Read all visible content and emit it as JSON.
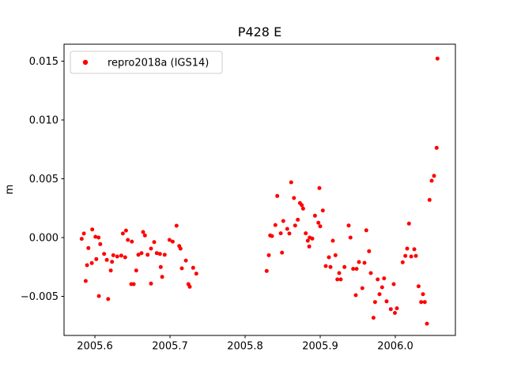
{
  "figure": {
    "title": "P428 E",
    "ylabel": "m",
    "legend": {
      "label": "repro2018a (IGS14)"
    },
    "colors": {
      "marker": "#ff0000",
      "axis": "#000000",
      "legend_border": "#cccccc",
      "background": "#ffffff"
    }
  },
  "chart_data": {
    "type": "scatter",
    "title": "P428 E",
    "xlabel": "",
    "ylabel": "m",
    "xlim": [
      2005.5589,
      2006.08
    ],
    "ylim": [
      -0.008322,
      0.016443
    ],
    "xticks": [
      2005.6,
      2005.7,
      2005.8,
      2005.9,
      2006.0
    ],
    "yticks": [
      -0.005,
      0.0,
      0.005,
      0.01,
      0.015
    ],
    "grid": false,
    "legend_position": "upper left",
    "series": [
      {
        "name": "repro2018a (IGS14)",
        "color": "#ff0000",
        "marker": "dot",
        "points": [
          [
            2005.5965,
            0.00069
          ],
          [
            2005.5853,
            0.00034
          ],
          [
            2005.5824,
            -0.00011
          ],
          [
            2005.6007,
            7e-05
          ],
          [
            2005.6049,
            0.0
          ],
          [
            2005.6372,
            0.00034
          ],
          [
            2005.6414,
            0.0006
          ],
          [
            2005.6439,
            -0.0002
          ],
          [
            2005.6492,
            -0.00034
          ],
          [
            2005.6071,
            -0.00056
          ],
          [
            2005.5913,
            -0.00089
          ],
          [
            2005.6123,
            -0.00139
          ],
          [
            2005.6245,
            -0.0015
          ],
          [
            2005.6158,
            -0.0019
          ],
          [
            2005.6018,
            -0.00183
          ],
          [
            2005.6298,
            -0.00161
          ],
          [
            2005.6351,
            -0.00154
          ],
          [
            2005.6403,
            -0.00168
          ],
          [
            2005.5958,
            -0.00217
          ],
          [
            2005.5895,
            -0.00235
          ],
          [
            2005.6228,
            -0.00206
          ],
          [
            2005.6211,
            -0.0028
          ],
          [
            2005.5877,
            -0.00369
          ],
          [
            2005.6484,
            -0.00396
          ],
          [
            2005.6053,
            -0.00497
          ],
          [
            2005.6176,
            -0.00523
          ],
          [
            2005.7087,
            0.00101
          ],
          [
            2005.6642,
            0.00047
          ],
          [
            2005.6666,
            0.00018
          ],
          [
            2005.6993,
            -0.0002
          ],
          [
            2005.7035,
            -0.00034
          ],
          [
            2005.6789,
            -0.00038
          ],
          [
            2005.7123,
            -0.00072
          ],
          [
            2005.714,
            -0.00094
          ],
          [
            2005.6747,
            -0.00094
          ],
          [
            2005.6824,
            -0.00132
          ],
          [
            2005.6866,
            -0.00139
          ],
          [
            2005.6702,
            -0.00146
          ],
          [
            2005.6579,
            -0.00146
          ],
          [
            2005.6621,
            -0.00132
          ],
          [
            2005.6929,
            -0.00146
          ],
          [
            2005.7211,
            -0.00195
          ],
          [
            2005.7158,
            -0.00262
          ],
          [
            2005.7308,
            -0.00257
          ],
          [
            2005.655,
            -0.0028
          ],
          [
            2005.735,
            -0.00307
          ],
          [
            2005.6877,
            -0.0025
          ],
          [
            2005.6895,
            -0.00334
          ],
          [
            2005.6516,
            -0.00396
          ],
          [
            2005.6747,
            -0.00391
          ],
          [
            2005.7245,
            -0.00396
          ],
          [
            2005.7263,
            -0.00418
          ],
          [
            2005.8614,
            0.0047
          ],
          [
            2005.8989,
            0.00421
          ],
          [
            2005.8428,
            0.00354
          ],
          [
            2005.865,
            0.00336
          ],
          [
            2005.873,
            0.00293
          ],
          [
            2005.8755,
            0.00275
          ],
          [
            2005.8772,
            0.00246
          ],
          [
            2005.9035,
            0.0023
          ],
          [
            2005.893,
            0.00186
          ],
          [
            2005.8702,
            0.00152
          ],
          [
            2005.8508,
            0.00141
          ],
          [
            2005.8403,
            0.00107
          ],
          [
            2005.8666,
            0.00103
          ],
          [
            2005.8976,
            0.00126
          ],
          [
            2005.9,
            0.00096
          ],
          [
            2005.8474,
            0.00036
          ],
          [
            2005.8561,
            0.00074
          ],
          [
            2005.8589,
            0.00034
          ],
          [
            2005.8333,
            0.00018
          ],
          [
            2005.8358,
            0.00013
          ],
          [
            2005.8807,
            0.00036
          ],
          [
            2005.886,
            0.0
          ],
          [
            2005.8835,
            -0.00027
          ],
          [
            2005.8895,
            -9e-05
          ],
          [
            2005.8853,
            -0.00076
          ],
          [
            2005.8491,
            -0.00128
          ],
          [
            2005.8316,
            -0.0015
          ],
          [
            2005.9074,
            -0.00242
          ],
          [
            2005.8287,
            -0.00284
          ],
          [
            2005.9379,
            0.00103
          ],
          [
            2005.9614,
            0.00062
          ],
          [
            2005.9403,
            0.0
          ],
          [
            2005.9168,
            -0.00027
          ],
          [
            2005.965,
            -0.00116
          ],
          [
            2005.9203,
            -0.0015
          ],
          [
            2005.9116,
            -0.00168
          ],
          [
            2005.9137,
            -0.0025
          ],
          [
            2005.9323,
            -0.0025
          ],
          [
            2005.9439,
            -0.00266
          ],
          [
            2005.9484,
            -0.00266
          ],
          [
            2005.9516,
            -0.00208
          ],
          [
            2005.9589,
            -0.00215
          ],
          [
            2005.9253,
            -0.00302
          ],
          [
            2005.9228,
            -0.00356
          ],
          [
            2005.9274,
            -0.00356
          ],
          [
            2005.9674,
            -0.00302
          ],
          [
            2005.9765,
            -0.00356
          ],
          [
            2005.985,
            -0.00347
          ],
          [
            2005.9979,
            -0.00396
          ],
          [
            2005.9824,
            -0.00423
          ],
          [
            2005.9561,
            -0.0043
          ],
          [
            2005.9474,
            -0.0049
          ],
          [
            2005.9789,
            -0.00481
          ],
          [
            2005.973,
            -0.00548
          ],
          [
            2005.9884,
            -0.00542
          ],
          [
            2005.994,
            -0.00609
          ],
          [
            2006.0021,
            -0.00601
          ],
          [
            2005.9995,
            -0.00641
          ],
          [
            2005.9709,
            -0.00682
          ],
          [
            2006.0456,
            0.0032
          ],
          [
            2006.0182,
            0.00119
          ],
          [
            2006.0158,
            -0.00094
          ],
          [
            2006.0253,
            -0.00099
          ],
          [
            2006.0134,
            -0.00156
          ],
          [
            2006.0211,
            -0.00161
          ],
          [
            2006.0274,
            -0.00156
          ],
          [
            2006.0098,
            -0.0021
          ],
          [
            2006.0551,
            0.00763
          ],
          [
            2006.0516,
            0.00525
          ],
          [
            2006.0484,
            0.00483
          ],
          [
            2006.0561,
            0.01522
          ],
          [
            2006.0309,
            -0.00414
          ],
          [
            2006.0368,
            -0.00481
          ],
          [
            2006.0344,
            -0.00548
          ],
          [
            2006.0393,
            -0.00548
          ],
          [
            2006.0421,
            -0.00732
          ]
        ]
      }
    ]
  }
}
